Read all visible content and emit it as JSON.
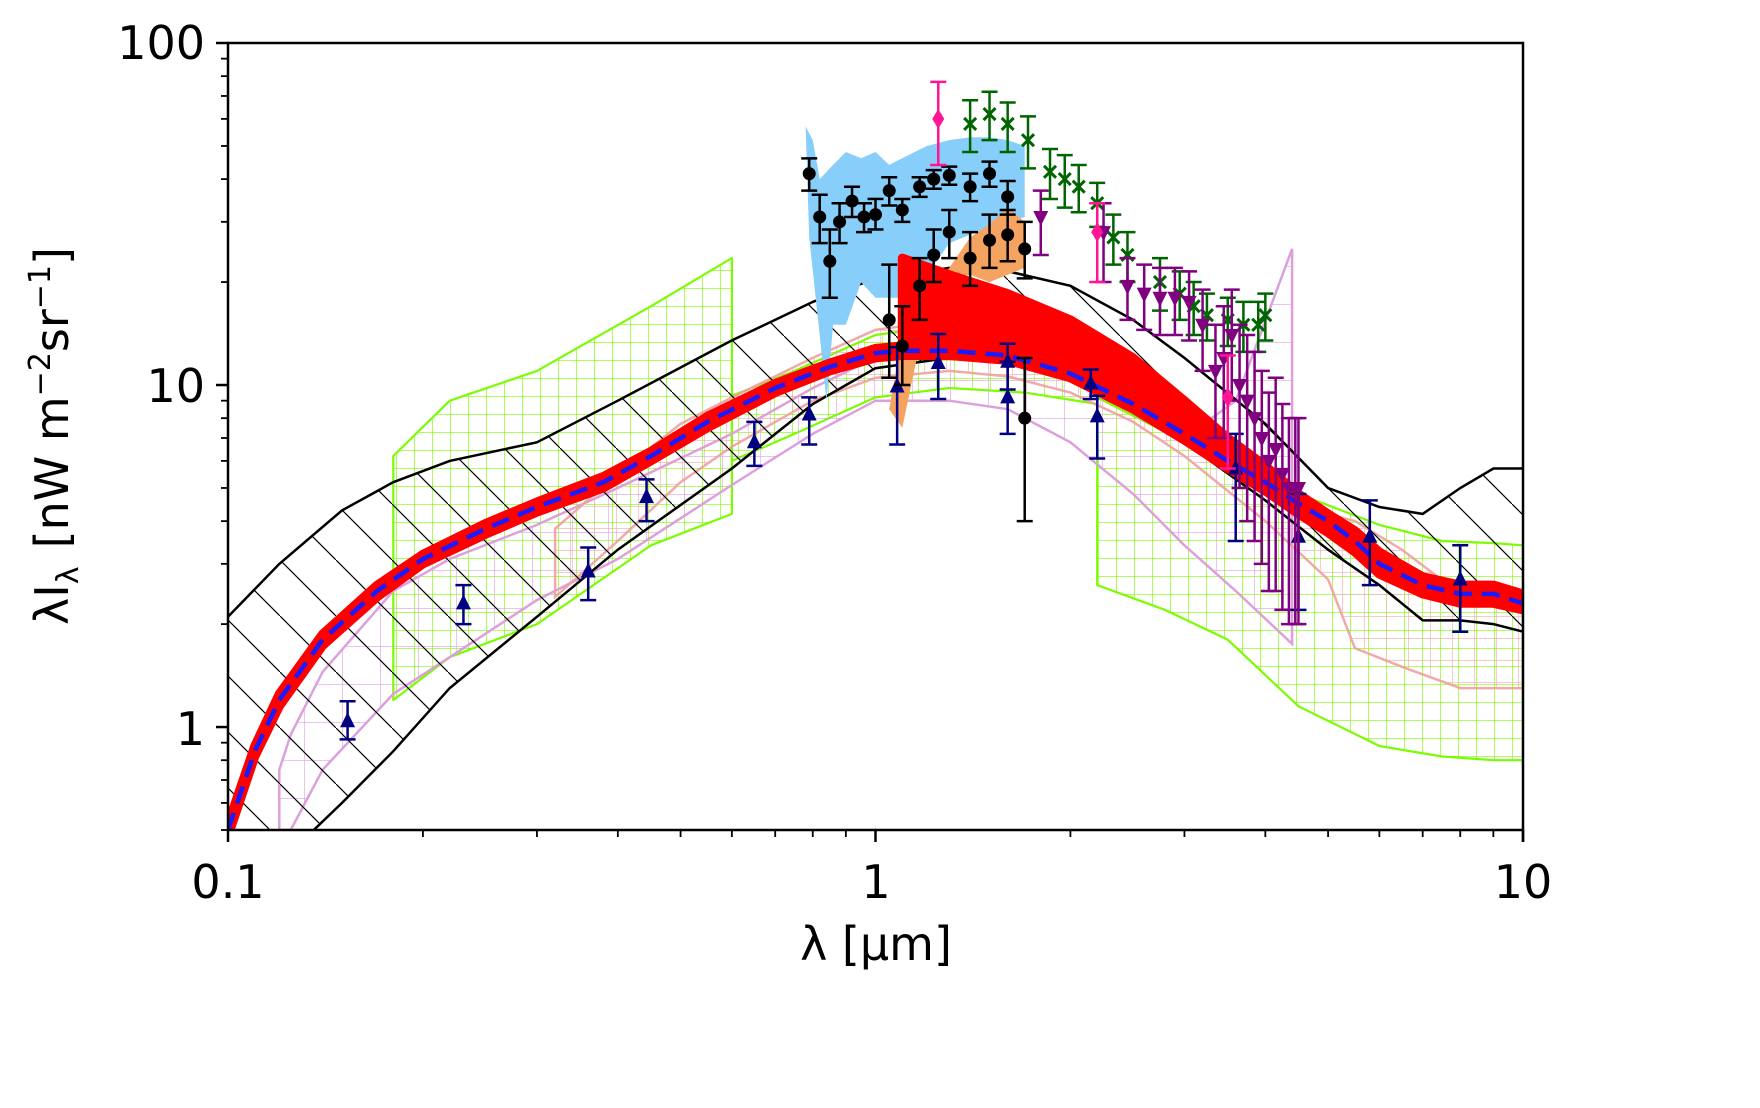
{
  "chart_data": {
    "type": "scatter",
    "title": "",
    "xlabel": "λ  [μm]",
    "ylabel_main": "λI",
    "ylabel_sub": "λ",
    "ylabel_units": "[nW m",
    "ylabel_exp1": "−2",
    "ylabel_mid": "sr",
    "ylabel_exp2": "−1",
    "ylabel_close": "]",
    "xscale": "log",
    "yscale": "log",
    "xlim": [
      0.1,
      10
    ],
    "ylim": [
      0.5,
      100
    ],
    "grid": false,
    "legend": "none",
    "x_ticks": [
      {
        "value": 0.1,
        "label": "0.1"
      },
      {
        "value": 1,
        "label": "1"
      },
      {
        "value": 10,
        "label": "10"
      }
    ],
    "y_ticks": [
      {
        "value": 1,
        "label": "1"
      },
      {
        "value": 10,
        "label": "10"
      },
      {
        "value": 100,
        "label": "100"
      }
    ],
    "colors": {
      "model_band": "#ff0000",
      "model_line": "#1a1aff",
      "hatched_band": "#000000",
      "green_band": "#7cfc00",
      "pink_band": "#f0a0a0",
      "violet_band": "#dda0dd",
      "blue_region": "#87cefa",
      "orange_region": "#f4a460",
      "triangles": "#000080",
      "black_points": "#000000",
      "crosses": "#006400",
      "down_triangles": "#800080",
      "diamonds": "#ff1493"
    },
    "series": [
      {
        "name": "model-median",
        "kind": "dashed-line",
        "x": [
          0.1,
          0.11,
          0.12,
          0.14,
          0.17,
          0.2,
          0.25,
          0.3,
          0.38,
          0.45,
          0.55,
          0.7,
          0.85,
          1.0,
          1.1,
          1.3,
          1.6,
          2.0,
          2.5,
          3.0,
          3.5,
          4.0,
          4.5,
          5.0,
          5.5,
          6.0,
          7.0,
          8.0,
          9.0,
          10.0
        ],
        "y": [
          0.5,
          0.85,
          1.2,
          1.8,
          2.5,
          3.1,
          3.8,
          4.4,
          5.2,
          6.2,
          7.8,
          9.8,
          11.3,
          12.4,
          12.6,
          12.6,
          12.2,
          10.8,
          8.8,
          7.2,
          6.0,
          5.2,
          4.5,
          4.0,
          3.5,
          3.0,
          2.6,
          2.45,
          2.45,
          2.3
        ]
      },
      {
        "name": "model-band-red",
        "kind": "band",
        "x": [
          0.1,
          0.11,
          0.12,
          0.14,
          0.17,
          0.2,
          0.25,
          0.3,
          0.38,
          0.45,
          0.55,
          0.7,
          0.85,
          1.0,
          1.1,
          1.1,
          1.3,
          1.6,
          2.0,
          2.5,
          3.0,
          3.5,
          4.0,
          4.5,
          5.0,
          5.5,
          6.0,
          7.0,
          8.0,
          9.0,
          10.0
        ],
        "lower": [
          0.48,
          0.82,
          1.15,
          1.73,
          2.4,
          3.0,
          3.66,
          4.25,
          5.0,
          6.0,
          7.5,
          9.5,
          11.0,
          12.0,
          12.2,
          12.2,
          12.2,
          11.8,
          10.5,
          8.5,
          6.9,
          5.7,
          4.9,
          4.2,
          3.7,
          3.25,
          2.8,
          2.45,
          2.3,
          2.3,
          2.2
        ],
        "upper": [
          0.52,
          0.88,
          1.25,
          1.87,
          2.6,
          3.2,
          3.94,
          4.55,
          5.4,
          6.4,
          8.1,
          10.1,
          11.6,
          12.8,
          13.0,
          23.5,
          21.0,
          18.5,
          15.5,
          12.0,
          9.0,
          7.0,
          5.8,
          4.8,
          4.2,
          3.75,
          3.25,
          2.75,
          2.6,
          2.6,
          2.45
        ]
      },
      {
        "name": "hatched-band-black",
        "kind": "band",
        "x": [
          0.1,
          0.12,
          0.15,
          0.18,
          0.22,
          0.3,
          0.4,
          0.6,
          0.8,
          1.0,
          1.3,
          1.6,
          2.0,
          2.5,
          3.0,
          4.0,
          5.0,
          6.0,
          7.0,
          8.0,
          9.0,
          10.0
        ],
        "lower": [
          0.3,
          0.4,
          0.6,
          0.85,
          1.3,
          2.1,
          3.3,
          5.7,
          8.8,
          11.2,
          12.0,
          11.7,
          10.5,
          8.5,
          6.8,
          4.6,
          3.3,
          2.6,
          2.05,
          2.05,
          2.0,
          1.9
        ],
        "upper": [
          2.1,
          3.0,
          4.3,
          5.2,
          6.0,
          6.8,
          9.0,
          13.5,
          17.5,
          20.5,
          22.0,
          21.5,
          19.5,
          15.5,
          12.0,
          7.7,
          5.0,
          4.4,
          4.2,
          5.0,
          5.7,
          5.7
        ]
      },
      {
        "name": "green-hatched-band",
        "kind": "band-segments",
        "segments": [
          {
            "x": [
              0.18,
              0.22,
              0.3,
              0.45,
              0.6
            ],
            "lower": [
              1.2,
              1.6,
              2.0,
              3.4,
              4.2
            ],
            "upper": [
              6.2,
              9.0,
              11.0,
              17.0,
              23.5
            ]
          },
          {
            "x": [
              0.6,
              0.75,
              1.0,
              1.3,
              1.7,
              2.2
            ],
            "lower": [
              6.0,
              7.2,
              9.2,
              9.8,
              9.5,
              8.8
            ],
            "upper": [
              9.3,
              11.0,
              14.0,
              15.0,
              14.0,
              12.5
            ]
          },
          {
            "x": [
              2.2,
              2.8,
              3.5,
              4.5,
              6.0,
              7.5,
              9.0,
              10.0
            ],
            "lower": [
              2.6,
              2.2,
              1.8,
              1.15,
              0.88,
              0.82,
              0.8,
              0.8
            ],
            "upper": [
              9.2,
              7.3,
              6.2,
              4.8,
              3.9,
              3.5,
              3.45,
              3.4
            ]
          }
        ]
      },
      {
        "name": "pink-hatched-band",
        "kind": "band",
        "x": [
          0.32,
          0.4,
          0.5,
          0.6,
          0.8,
          1.0,
          1.3,
          1.6,
          2.0,
          2.5,
          3.0,
          4.0,
          5.0,
          5.5,
          6.5,
          8.0,
          10.0
        ],
        "lower": [
          2.4,
          3.5,
          5.2,
          6.6,
          9.0,
          10.5,
          11.0,
          10.6,
          9.5,
          7.8,
          6.2,
          4.0,
          2.7,
          1.7,
          1.5,
          1.3,
          1.3
        ],
        "upper": [
          3.8,
          5.5,
          7.7,
          9.2,
          12.0,
          14.5,
          15.5,
          15.0,
          13.5,
          11.0,
          8.5,
          5.6,
          4.2,
          4.0,
          3.3,
          2.45,
          2.4
        ]
      },
      {
        "name": "violet-hatched-band",
        "kind": "band",
        "x": [
          0.12,
          0.125,
          0.14,
          0.18,
          0.22,
          0.3,
          0.4,
          0.6,
          0.8,
          1.0,
          1.3,
          1.6,
          2.0,
          2.5,
          3.0,
          3.6,
          4.4
        ],
        "lower": [
          0.5,
          0.5,
          0.75,
          1.25,
          1.6,
          2.35,
          3.1,
          5.1,
          7.2,
          9.0,
          9.0,
          8.5,
          6.8,
          4.8,
          3.4,
          2.5,
          1.75
        ],
        "upper": [
          0.75,
          0.95,
          1.45,
          2.5,
          3.1,
          3.9,
          5.0,
          7.2,
          9.8,
          12.0,
          12.5,
          12.0,
          10.5,
          8.6,
          7.0,
          9.0,
          25.0
        ]
      },
      {
        "name": "blue-region",
        "kind": "polygon",
        "x": [
          0.78,
          0.8,
          0.82,
          0.86,
          0.9,
          0.95,
          1.0,
          1.05,
          1.1,
          1.2,
          1.3,
          1.4,
          1.5,
          1.6,
          1.7,
          1.7,
          1.5,
          1.3,
          1.2,
          1.15,
          1.1,
          1.0,
          0.95,
          0.9,
          0.86,
          0.84,
          0.82,
          0.79
        ],
        "y": [
          57.0,
          52.0,
          40.0,
          44.0,
          48.0,
          46.0,
          48.0,
          44.0,
          46.0,
          50.0,
          52.0,
          53.0,
          53.0,
          52.0,
          50.0,
          31.0,
          29.0,
          26.0,
          21.0,
          19.0,
          18.0,
          18.0,
          20.0,
          15.0,
          15.0,
          9.0,
          14.0,
          27.0
        ]
      },
      {
        "name": "orange-region",
        "kind": "polygon",
        "x": [
          1.05,
          1.1,
          1.2,
          1.3,
          1.4,
          1.5,
          1.6,
          1.7,
          1.7,
          1.6,
          1.5,
          1.4,
          1.3,
          1.2,
          1.1
        ],
        "y": [
          8.5,
          14.0,
          18.0,
          22.0,
          27.0,
          29.5,
          33.0,
          30.0,
          22.0,
          21.0,
          20.0,
          21.0,
          20.5,
          16.5,
          7.5
        ]
      },
      {
        "name": "navy-triangles",
        "kind": "points-errorbars",
        "marker": "triangle-up",
        "x": [
          0.153,
          0.231,
          0.36,
          0.443,
          0.65,
          0.79,
          1.08,
          1.25,
          1.6,
          1.6,
          2.15,
          2.2,
          3.6,
          4.5,
          5.8,
          8.0
        ],
        "y": [
          1.04,
          2.3,
          2.85,
          4.7,
          6.8,
          8.2,
          9.9,
          11.6,
          11.7,
          9.2,
          10.1,
          8.1,
          5.7,
          3.6,
          3.6,
          2.7
        ],
        "yerr_low": [
          0.12,
          0.3,
          0.5,
          0.7,
          1.0,
          1.5,
          3.2,
          2.5,
          2.0,
          2.0,
          1.0,
          2.0,
          2.2,
          1.4,
          1.0,
          0.8
        ],
        "yerr_high": [
          0.15,
          0.3,
          0.5,
          0.6,
          1.0,
          1.0,
          3.0,
          2.5,
          1.5,
          2.5,
          1.0,
          1.2,
          1.5,
          1.2,
          1.0,
          0.7
        ]
      },
      {
        "name": "black-circles",
        "kind": "points-errorbars",
        "marker": "circle",
        "x": [
          0.79,
          0.82,
          0.85,
          0.88,
          0.92,
          0.96,
          1.0,
          1.05,
          1.1,
          1.17,
          1.23,
          1.3,
          1.4,
          1.5,
          1.6,
          1.7,
          1.05,
          1.1,
          1.17,
          1.23,
          1.3,
          1.4,
          1.5,
          1.6,
          1.7
        ],
        "y": [
          41.5,
          31.0,
          23.0,
          30.0,
          34.5,
          31.0,
          31.5,
          37.0,
          32.5,
          38.0,
          40.0,
          41.0,
          38.0,
          41.5,
          35.5,
          8.0,
          15.5,
          13.0,
          19.5,
          24.0,
          28.0,
          23.5,
          26.5,
          27.5,
          25.0
        ],
        "yerr_low": [
          4.5,
          5.0,
          5.0,
          4.0,
          3.5,
          3.0,
          3.0,
          3.5,
          2.5,
          2.5,
          2.5,
          2.5,
          3.5,
          3.5,
          4.0,
          4.0,
          5.0,
          3.0,
          4.0,
          4.0,
          4.5,
          4.0,
          4.5,
          4.5,
          4.5
        ],
        "yerr_high": [
          4.5,
          5.0,
          5.5,
          4.0,
          3.5,
          3.0,
          3.5,
          3.5,
          2.5,
          2.5,
          2.5,
          2.5,
          3.5,
          3.5,
          4.0,
          4.0,
          7.0,
          4.0,
          4.0,
          4.5,
          4.5,
          4.5,
          5.0,
          5.0,
          5.0
        ]
      },
      {
        "name": "green-crosses",
        "kind": "points-errorbars",
        "marker": "x",
        "x": [
          1.4,
          1.5,
          1.6,
          1.72,
          1.86,
          1.96,
          2.06,
          2.2,
          2.33,
          2.45,
          2.75,
          2.95,
          3.1,
          3.25,
          3.5,
          3.7,
          3.9,
          4.0
        ],
        "y": [
          58.0,
          62.0,
          58.0,
          52.0,
          42.0,
          40.0,
          38.0,
          34.0,
          27.0,
          24.0,
          20.0,
          18.5,
          17.0,
          16.0,
          15.5,
          15.0,
          15.0,
          16.0
        ],
        "yerr_low": [
          10.0,
          10.0,
          10.0,
          9.0,
          7.0,
          7.0,
          6.0,
          5.0,
          4.5,
          4.0,
          3.5,
          3.0,
          3.0,
          2.5,
          2.5,
          2.5,
          2.5,
          2.5
        ],
        "yerr_high": [
          10.0,
          10.0,
          9.0,
          9.0,
          7.0,
          7.0,
          6.0,
          5.0,
          4.5,
          4.0,
          3.5,
          3.0,
          3.0,
          2.5,
          2.5,
          2.5,
          2.5,
          2.5
        ]
      },
      {
        "name": "purple-down-triangles",
        "kind": "points-errorbars",
        "marker": "triangle-down",
        "x": [
          1.8,
          2.25,
          2.45,
          2.6,
          2.75,
          2.9,
          3.05,
          3.2,
          3.35,
          3.45,
          3.55,
          3.65,
          3.75,
          3.85,
          3.95,
          4.05,
          4.15,
          4.25,
          4.35,
          4.45,
          4.5
        ],
        "y": [
          31.0,
          28.0,
          19.5,
          18.5,
          18.0,
          18.0,
          17.5,
          15.0,
          11.0,
          12.0,
          14.0,
          10.0,
          9.0,
          8.0,
          7.0,
          6.0,
          6.5,
          5.5,
          5.0,
          5.0,
          5.0
        ],
        "yerr_low": [
          7.0,
          8.0,
          4.0,
          4.0,
          4.0,
          4.0,
          4.0,
          4.0,
          4.0,
          5.0,
          5.0,
          5.0,
          5.0,
          4.5,
          4.0,
          3.5,
          4.0,
          3.3,
          3.0,
          3.0,
          3.0
        ],
        "yerr_high": [
          6.0,
          6.0,
          4.0,
          4.0,
          4.0,
          4.0,
          4.0,
          4.0,
          4.0,
          5.0,
          5.0,
          5.0,
          5.0,
          4.5,
          4.0,
          3.5,
          4.0,
          3.3,
          3.0,
          3.0,
          3.0
        ]
      },
      {
        "name": "pink-diamonds",
        "kind": "points-errorbars",
        "marker": "diamond",
        "x": [
          1.25,
          2.2,
          3.5
        ],
        "y": [
          60.0,
          28.0,
          9.2
        ],
        "yerr_low": [
          16.0,
          8.0,
          3.5
        ],
        "yerr_high": [
          17.0,
          6.0,
          3.0
        ]
      }
    ]
  }
}
